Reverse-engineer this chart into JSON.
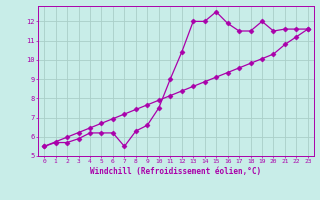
{
  "title": "",
  "xlabel": "Windchill (Refroidissement éolien,°C)",
  "ylabel": "",
  "bg_color": "#c8ede8",
  "grid_color": "#aacfc8",
  "line_color": "#aa00aa",
  "xlim": [
    -0.5,
    23.5
  ],
  "ylim": [
    5,
    12.8
  ],
  "yticks": [
    5,
    6,
    7,
    8,
    9,
    10,
    11,
    12
  ],
  "xticks": [
    0,
    1,
    2,
    3,
    4,
    5,
    6,
    7,
    8,
    9,
    10,
    11,
    12,
    13,
    14,
    15,
    16,
    17,
    18,
    19,
    20,
    21,
    22,
    23
  ],
  "line1_x": [
    0,
    1,
    2,
    3,
    4,
    5,
    6,
    7,
    8,
    9,
    10,
    11,
    12,
    13,
    14,
    15,
    16,
    17,
    18,
    19,
    20,
    21,
    22,
    23
  ],
  "line1_y": [
    5.5,
    5.7,
    5.7,
    5.9,
    6.2,
    6.2,
    6.2,
    5.5,
    6.3,
    6.6,
    7.5,
    9.0,
    10.4,
    12.0,
    12.0,
    12.5,
    11.9,
    11.5,
    11.5,
    12.0,
    11.5,
    11.6,
    11.6,
    11.6
  ],
  "line2_x": [
    0,
    1,
    2,
    3,
    4,
    5,
    6,
    7,
    8,
    9,
    10,
    11,
    12,
    13,
    14,
    15,
    16,
    17,
    18,
    19,
    20,
    21,
    22,
    23
  ],
  "line2_y": [
    5.5,
    5.74,
    5.98,
    6.22,
    6.46,
    6.7,
    6.94,
    7.18,
    7.42,
    7.66,
    7.9,
    8.14,
    8.38,
    8.62,
    8.86,
    9.1,
    9.34,
    9.58,
    9.82,
    10.06,
    10.3,
    10.8,
    11.2,
    11.6
  ],
  "marker": "D",
  "markersize": 2.5,
  "linewidth": 0.9
}
